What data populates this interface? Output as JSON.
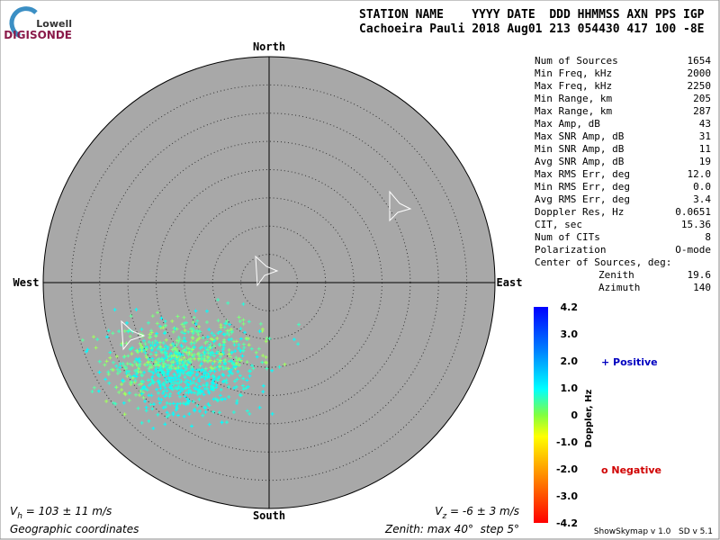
{
  "logo": {
    "line1": "Lowell",
    "line2": "DIGISONDE"
  },
  "header": {
    "labels": "STATION NAME    YYYY DATE  DDD HHMMSS AXN PPS IGP",
    "values": "Cachoeira Pauli 2018 Aug01 213 054430 417 100 -8E"
  },
  "stats": [
    [
      "Num of Sources",
      "1654"
    ],
    [
      "Min Freq, kHz",
      "2000"
    ],
    [
      "Max Freq, kHz",
      "2250"
    ],
    [
      "Min Range, km",
      "205"
    ],
    [
      "Max Range, km",
      "287"
    ],
    [
      "Max Amp, dB",
      "43"
    ],
    [
      "Max SNR Amp, dB",
      "31"
    ],
    [
      "Min SNR Amp, dB",
      "11"
    ],
    [
      "Avg SNR Amp, dB",
      "19"
    ],
    [
      "Max RMS Err, deg",
      "12.0"
    ],
    [
      "Min RMS Err, deg",
      "0.0"
    ],
    [
      "Avg RMS Err, deg",
      "3.4"
    ],
    [
      "Doppler Res, Hz",
      "0.0651"
    ],
    [
      "CIT, sec",
      "15.36"
    ],
    [
      "Num of CITs",
      "8"
    ],
    [
      "Polarization",
      "O-mode"
    ]
  ],
  "center": {
    "title": "Center of Sources, deg:",
    "zenith_label": "Zenith",
    "zenith": "19.6",
    "azimuth_label": "Azimuth",
    "azimuth": "140"
  },
  "compass": {
    "north": "North",
    "south": "South",
    "east": "East",
    "west": "West"
  },
  "colorbar": {
    "ticks": [
      "4.2",
      "3.0",
      "2.0",
      "1.0",
      "0",
      "-1.0",
      "-2.0",
      "-3.0",
      "-4.2"
    ],
    "label": "Doppler, Hz"
  },
  "legend": {
    "positive": "+ Positive",
    "negative": "o Negative"
  },
  "footer": {
    "vh_symbol": "V",
    "vh_sub": "h",
    "vh_text": " = 103 ± 11 m/s",
    "vz_symbol": "V",
    "vz_sub": "z",
    "vz_text": " = -6 ± 3 m/s",
    "coords": "Geographic coordinates",
    "zenith": "Zenith: max 40°  step 5°",
    "version": "ShowSkymap v 1.0   SD v 5.1"
  }
}
